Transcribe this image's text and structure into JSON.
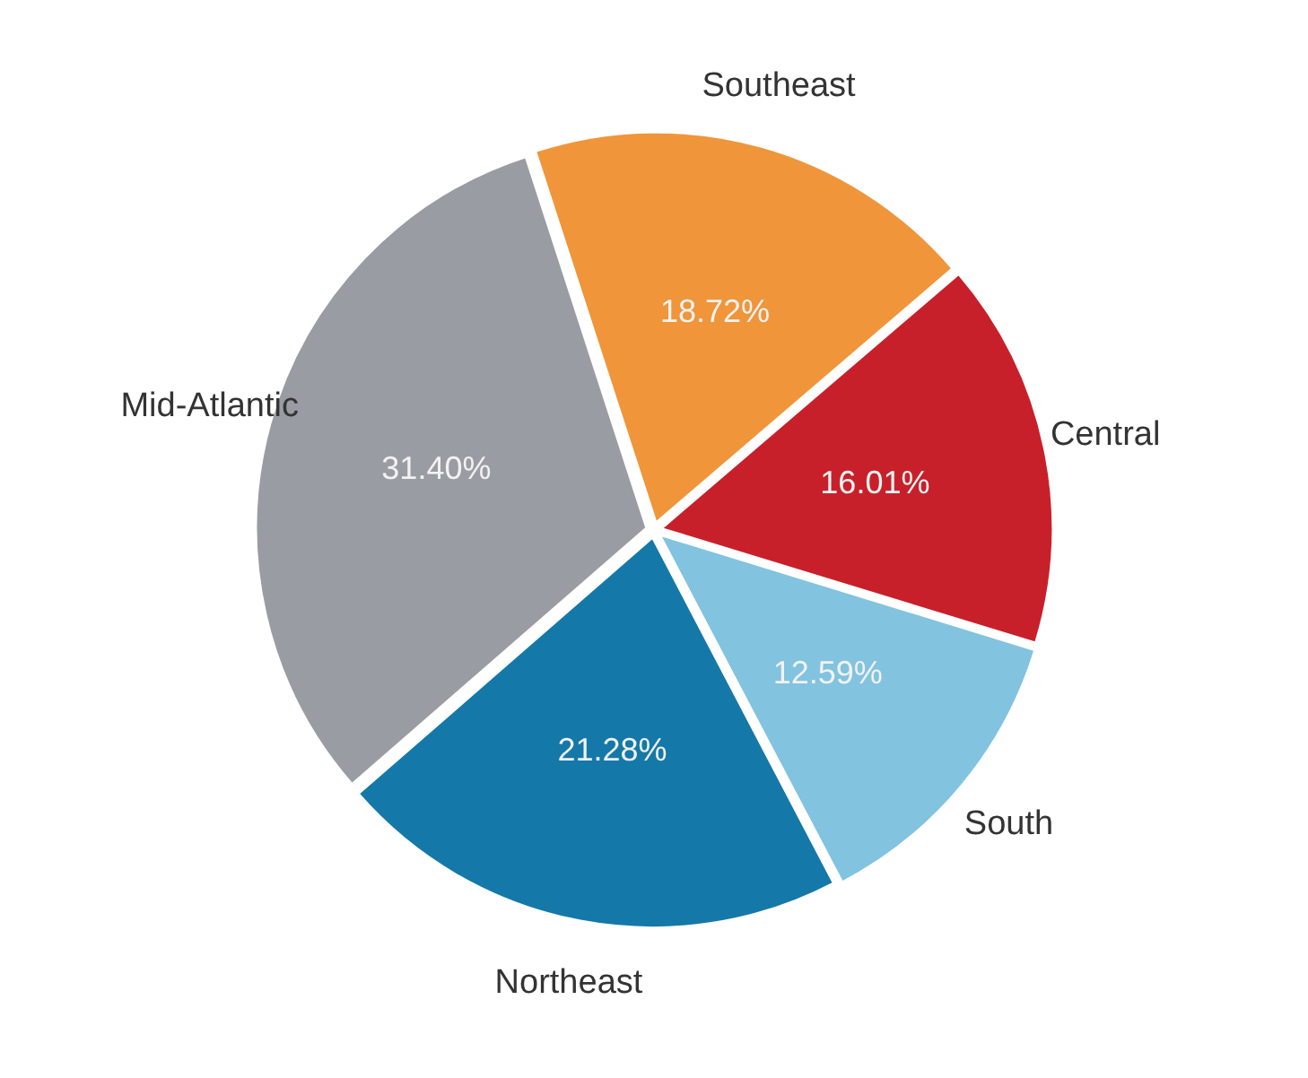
{
  "chart_data": {
    "type": "pie",
    "categories": [
      "Southeast",
      "Central",
      "South",
      "Northeast",
      "Mid-Atlantic"
    ],
    "values": [
      18.72,
      16.01,
      12.59,
      21.28,
      31.4
    ],
    "colors": [
      "#f0953a",
      "#c8202a",
      "#82c3df",
      "#1479a8",
      "#9a9ca3"
    ],
    "value_labels": [
      "18.72%",
      "16.01%",
      "12.59%",
      "21.28%",
      "31.40%"
    ],
    "legend": false
  }
}
